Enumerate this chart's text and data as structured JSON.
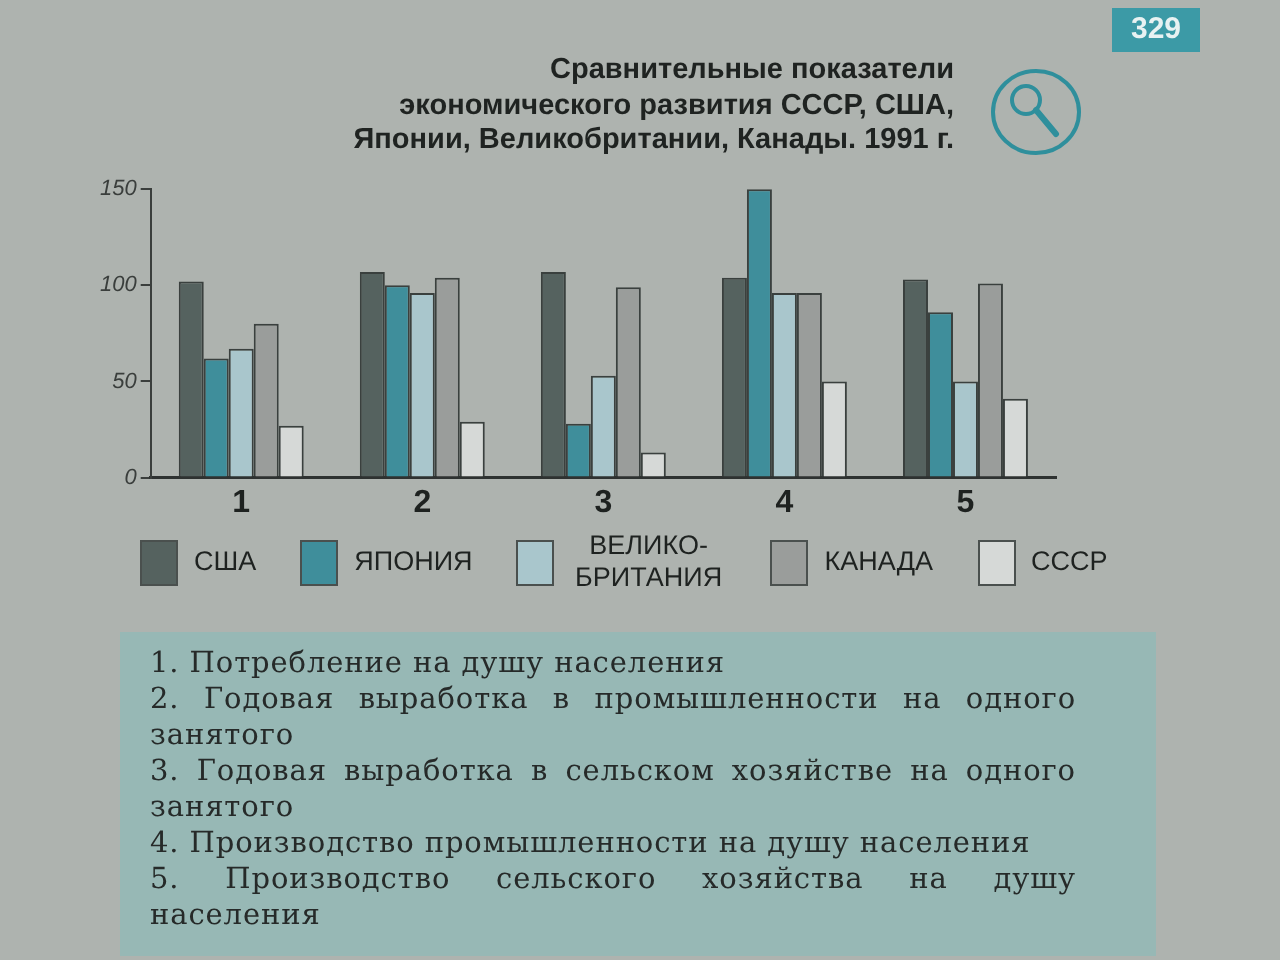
{
  "chart_data": {
    "type": "bar",
    "title": "Сравнительные показатели экономического развития СССР, США, Японии, Великобритании, Канады. 1991 г.",
    "categories": [
      "1",
      "2",
      "3",
      "4",
      "5"
    ],
    "series": [
      {
        "name": "США",
        "color": "#55625f",
        "values": [
          102,
          107,
          107,
          104,
          103
        ]
      },
      {
        "name": "ЯПОНИЯ",
        "color": "#3f8e9b",
        "values": [
          62,
          100,
          28,
          150,
          86
        ]
      },
      {
        "name": "ВЕЛИКО-БРИТАНИЯ",
        "color": "#a9c6cc",
        "values": [
          67,
          96,
          53,
          96,
          50
        ]
      },
      {
        "name": "КАНАДА",
        "color": "#9a9d9b",
        "values": [
          80,
          104,
          99,
          96,
          101
        ]
      },
      {
        "name": "СССР",
        "color": "#d6d9d7",
        "values": [
          27,
          29,
          13,
          50,
          41
        ]
      }
    ],
    "ylim": [
      0,
      150
    ],
    "yticks": [
      0,
      50,
      100,
      150
    ],
    "legend": "bottom",
    "annotations": [
      "329",
      "1. Потребление на душу населения",
      "2. Годовая выработка в промышленности на одного занятого",
      "3. Годовая выработка в сельском хозяйстве на одного занятого",
      "4. Производство промышленности на душу населения",
      "5. Производство сельского хозяйства на душу населения"
    ]
  }
}
